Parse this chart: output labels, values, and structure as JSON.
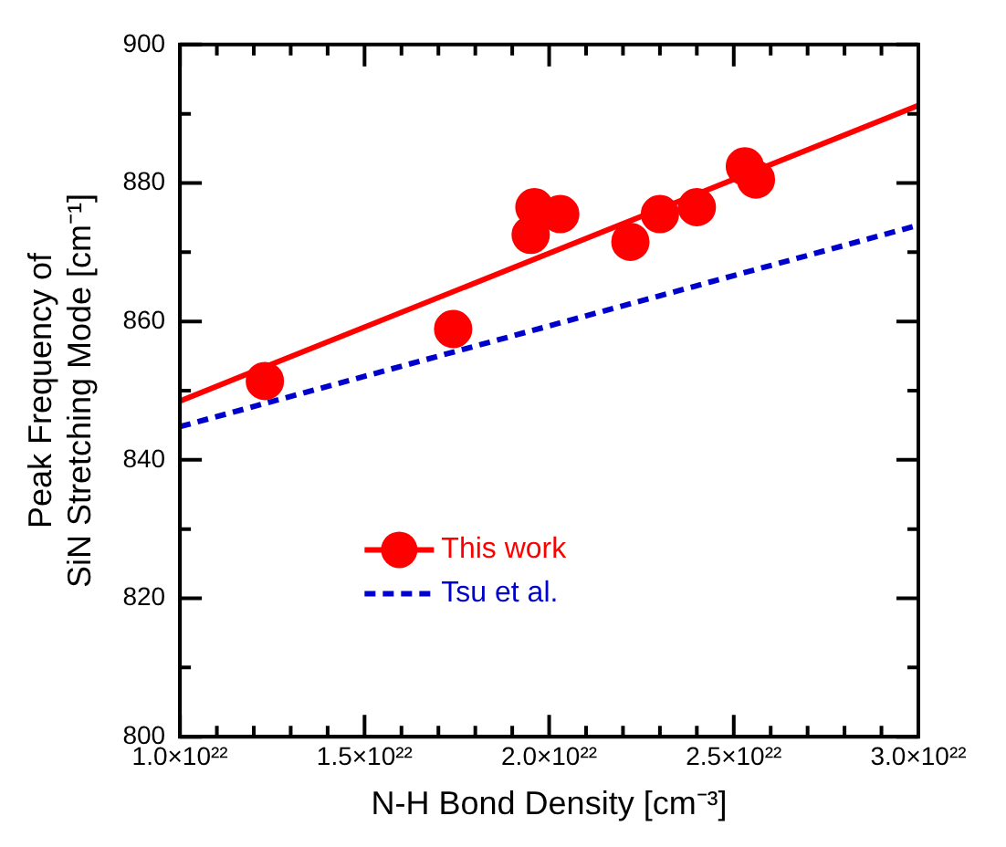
{
  "chart_data": {
    "type": "scatter",
    "xlabel": "N-H Bond Density [cm⁻³]",
    "ylabel": "Peak Frequency of\nSiN Stretching Mode [cm⁻¹]",
    "xlim": [
      1e+22,
      3e+22
    ],
    "ylim": [
      800,
      900
    ],
    "xticks": [
      {
        "value": 1e+22,
        "label": "1.0×10²²"
      },
      {
        "value": 1.1e+22,
        "label": null
      },
      {
        "value": 1.2e+22,
        "label": null
      },
      {
        "value": 1.3e+22,
        "label": null
      },
      {
        "value": 1.4e+22,
        "label": null
      },
      {
        "value": 1.5e+22,
        "label": "1.5×10²²"
      },
      {
        "value": 1.6e+22,
        "label": null
      },
      {
        "value": 1.7e+22,
        "label": null
      },
      {
        "value": 1.8e+22,
        "label": null
      },
      {
        "value": 1.9e+22,
        "label": null
      },
      {
        "value": 2e+22,
        "label": "2.0×10²²"
      },
      {
        "value": 2.1e+22,
        "label": null
      },
      {
        "value": 2.2e+22,
        "label": null
      },
      {
        "value": 2.3e+22,
        "label": null
      },
      {
        "value": 2.4e+22,
        "label": null
      },
      {
        "value": 2.5e+22,
        "label": "2.5×10²²"
      },
      {
        "value": 2.6e+22,
        "label": null
      },
      {
        "value": 2.7e+22,
        "label": null
      },
      {
        "value": 2.8e+22,
        "label": null
      },
      {
        "value": 2.9e+22,
        "label": null
      },
      {
        "value": 3e+22,
        "label": "3.0×10²²"
      }
    ],
    "yticks": [
      800,
      {
        "value": 810,
        "label": null
      },
      820,
      {
        "value": 830,
        "label": null
      },
      840,
      {
        "value": 850,
        "label": null
      },
      860,
      {
        "value": 870,
        "label": null
      },
      880,
      {
        "value": 890,
        "label": null
      },
      900
    ],
    "grid": false,
    "legend": "bottom left",
    "marker": "circle",
    "series": [
      {
        "name": "This work",
        "color": "#ff0000",
        "x": [
          1.23e+22,
          1.74e+22,
          1.96e+22,
          1.95e+22,
          2.03e+22,
          2.22e+22,
          2.3e+22,
          2.4e+22,
          2.53e+22,
          2.56e+22
        ],
        "values": [
          851.4,
          858.9,
          876.5,
          872.5,
          875.5,
          871.5,
          875.5,
          876.5,
          882.4,
          880.5
        ]
      },
      {
        "type": "line",
        "color": "#ff0000",
        "line_style": "solid",
        "marker": "none",
        "x": [
          1e+22,
          3e+22
        ],
        "values": [
          848.5,
          891.2
        ]
      },
      {
        "name": "Tsu et al.",
        "type": "line",
        "color": "#0000cc",
        "line_style": "dashed",
        "marker": "none",
        "x": [
          1e+22,
          3e+22
        ],
        "values": [
          844.8,
          873.9
        ]
      }
    ]
  }
}
